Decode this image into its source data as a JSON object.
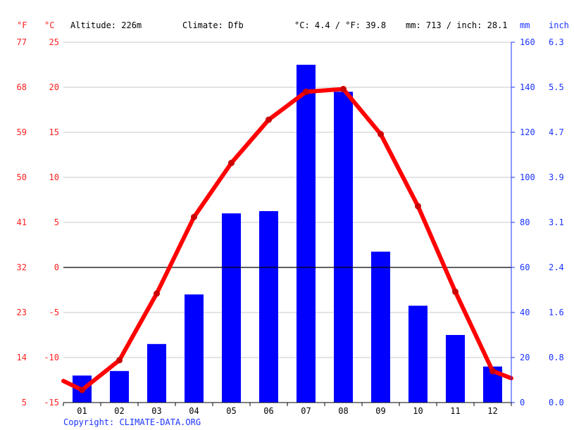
{
  "header": {
    "unit_f": "°F",
    "unit_c": "°C",
    "altitude": "Altitude: 226m",
    "climate": "Climate: Dfb",
    "temp_summary": "°C: 4.4 / °F: 39.8",
    "precip_summary": "mm: 713 / inch: 28.1",
    "unit_mm": "mm",
    "unit_inch": "inch"
  },
  "copyright": "Copyright: CLIMATE-DATA.ORG",
  "colors": {
    "temperature": "#ff0000",
    "precipitation": "#0000ff",
    "zero_line": "#000000",
    "grid": "#c8c8c8"
  },
  "chart_data": {
    "type": "bar",
    "categories": [
      "01",
      "02",
      "03",
      "04",
      "05",
      "06",
      "07",
      "08",
      "09",
      "10",
      "11",
      "12"
    ],
    "series": [
      {
        "type": "bar",
        "axis": "right",
        "unit": "mm",
        "values": [
          12,
          14,
          26,
          48,
          84,
          85,
          150,
          138,
          67,
          43,
          30,
          16
        ]
      },
      {
        "type": "line",
        "axis": "left",
        "unit": "°C",
        "values": [
          -13.6,
          -10.3,
          -2.9,
          5.6,
          11.6,
          16.4,
          19.5,
          19.8,
          14.8,
          6.8,
          -2.7,
          -11.5
        ],
        "edge_values": [
          -12.6,
          -12.3
        ]
      }
    ],
    "y_left_c": {
      "ylim": [
        -15,
        25
      ],
      "ticks": [
        "-15",
        "-10",
        "-5",
        "0",
        "5",
        "10",
        "15",
        "20",
        "25"
      ]
    },
    "y_left_f": {
      "ticks": [
        "5",
        "14",
        "23",
        "32",
        "41",
        "50",
        "59",
        "68",
        "77"
      ]
    },
    "y_right_mm": {
      "ylim": [
        0,
        160
      ],
      "ticks": [
        "0",
        "20",
        "40",
        "60",
        "80",
        "100",
        "120",
        "140",
        "160"
      ]
    },
    "y_right_inch": {
      "ticks": [
        "0.0",
        "0.8",
        "1.6",
        "2.4",
        "3.1",
        "3.9",
        "4.7",
        "5.5",
        "6.3"
      ]
    },
    "grid": true
  }
}
